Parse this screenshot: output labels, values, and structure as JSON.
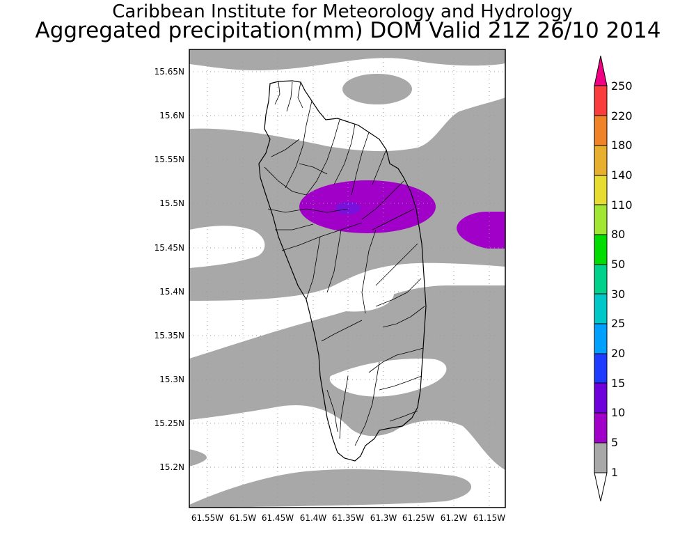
{
  "header": {
    "title": "Caribbean Institute for Meteorology and Hydrology",
    "subtitle": "Aggregated precipitation(mm) DOM Valid 21Z 26/10 2014"
  },
  "map": {
    "lat_labels": [
      "15.65N",
      "15.6N",
      "15.55N",
      "15.5N",
      "15.45N",
      "15.4N",
      "15.35N",
      "15.3N",
      "15.25N",
      "15.2N"
    ],
    "lon_labels": [
      "61.55W",
      "61.5W",
      "61.45W",
      "61.4W",
      "61.35W",
      "61.3W",
      "61.25W",
      "61.2W",
      "61.15W"
    ],
    "lat_range": [
      15.155,
      15.675
    ],
    "lon_range": [
      61.575,
      61.125
    ],
    "grid": true
  },
  "colorbar": {
    "labels": [
      "1",
      "5",
      "10",
      "15",
      "20",
      "25",
      "30",
      "50",
      "80",
      "110",
      "140",
      "180",
      "220",
      "250"
    ],
    "colors": [
      "#a8a8a8",
      "#a000c8",
      "#6e00dc",
      "#1e3cff",
      "#00a0ff",
      "#00c8c8",
      "#00d28c",
      "#00dc00",
      "#a0e632",
      "#e6dc32",
      "#e6af2d",
      "#f08228",
      "#fa3c3c",
      "#f00082"
    ]
  }
}
